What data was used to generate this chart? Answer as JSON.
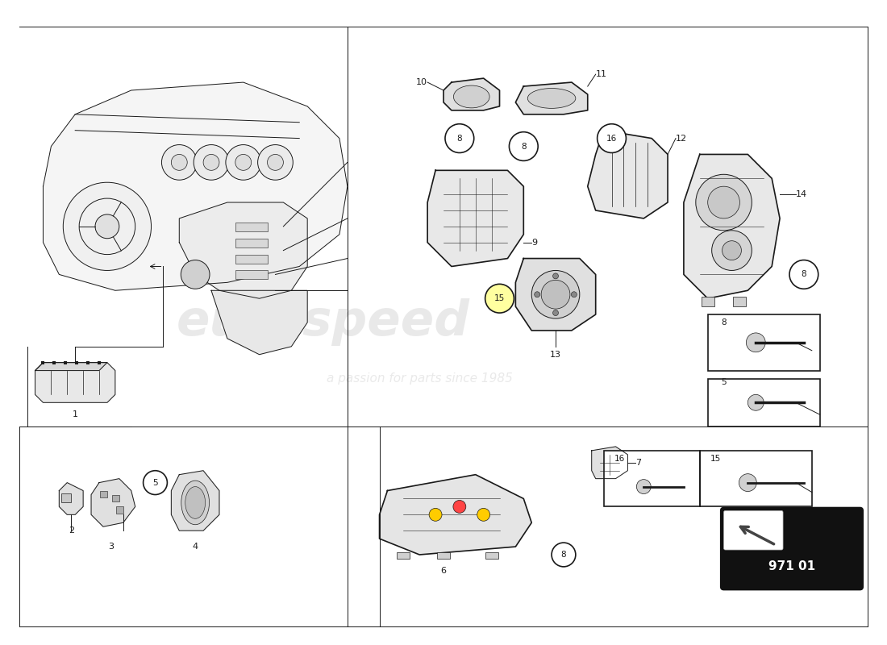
{
  "bg_color": "#ffffff",
  "line_color": "#1a1a1a",
  "watermark1": "eurospeed",
  "watermark2": "a passion for parts since 1985",
  "page_code": "971 01",
  "lw_main": 1.2,
  "lw_thin": 0.7,
  "lw_thick": 1.8
}
